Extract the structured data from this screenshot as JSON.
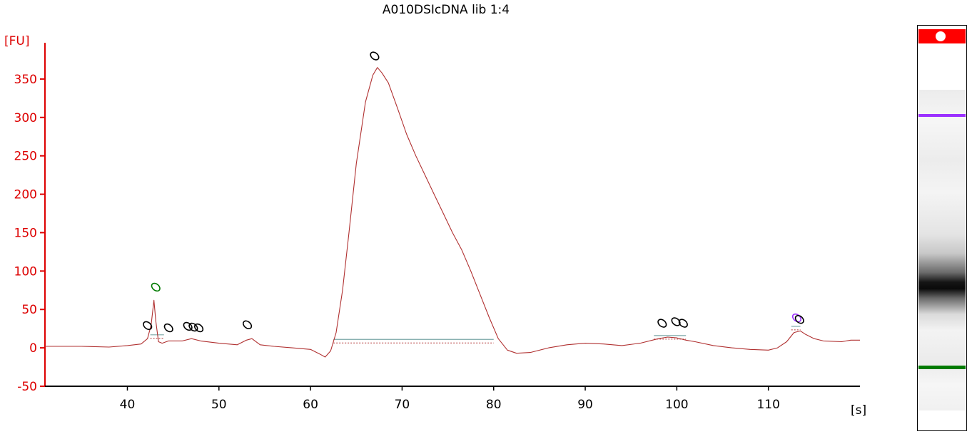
{
  "title": "A010DSIcDNA lib 1:4",
  "colors": {
    "axis_y": "#dd0000",
    "trace": "#b03030",
    "axis_x": "#000000",
    "baseline": "#7aa6a6",
    "marker_lower": "#007a00",
    "marker_upper": "#9b30ff",
    "peak_marker": "#000000"
  },
  "chart_data": {
    "type": "line",
    "title": "A010DSIcDNA lib 1:4",
    "xlabel": "[s]",
    "ylabel": "[FU]",
    "xlim": [
      31,
      120
    ],
    "ylim": [
      -50,
      400
    ],
    "x_ticks": [
      40,
      50,
      60,
      70,
      80,
      90,
      100,
      110
    ],
    "y_ticks": [
      -50,
      0,
      50,
      100,
      150,
      200,
      250,
      300,
      350
    ],
    "series": [
      {
        "name": "",
        "x": [
          31,
          35,
          38,
          40,
          41.5,
          42.2,
          42.6,
          42.9,
          43.1,
          43.4,
          43.8,
          44.5,
          46,
          47,
          48,
          50,
          52,
          53,
          53.6,
          54.5,
          56,
          58,
          60,
          61,
          61.6,
          62.2,
          62.8,
          63.5,
          64.2,
          65,
          66,
          66.8,
          67.3,
          67.8,
          68.5,
          69.5,
          70.5,
          71.5,
          72.5,
          73.5,
          74.5,
          75.5,
          76.5,
          77.5,
          78.5,
          79.5,
          80.5,
          81.5,
          82.5,
          84,
          86,
          88,
          90,
          92,
          94,
          96,
          98,
          99,
          100,
          101,
          102,
          104,
          106,
          108,
          110,
          111,
          112,
          112.8,
          113.5,
          114,
          115,
          116,
          118,
          119,
          120
        ],
        "y": [
          2,
          2,
          1,
          3,
          5,
          12,
          30,
          62,
          35,
          8,
          6,
          9,
          9,
          12,
          9,
          6,
          4,
          10,
          12,
          4,
          2,
          0,
          -2,
          -8,
          -12,
          -4,
          20,
          75,
          150,
          240,
          320,
          355,
          365,
          358,
          345,
          312,
          278,
          250,
          225,
          200,
          175,
          150,
          128,
          100,
          70,
          40,
          12,
          -3,
          -7,
          -6,
          0,
          4,
          6,
          5,
          3,
          6,
          12,
          14,
          13,
          10,
          8,
          3,
          0,
          -2,
          -3,
          0,
          8,
          20,
          22,
          18,
          12,
          9,
          8,
          10,
          10
        ]
      }
    ],
    "baselines": [
      {
        "x": [
          42.5,
          44
        ],
        "y": 17
      },
      {
        "x": [
          62.5,
          80
        ],
        "y": 11
      },
      {
        "x": [
          97.5,
          101
        ],
        "y": 16
      },
      {
        "x": [
          112.5,
          113.5
        ],
        "y": 28
      }
    ],
    "peak_markers": [
      {
        "x": 43.1,
        "y": 79,
        "color": "#007a00"
      },
      {
        "x": 42.2,
        "y": 29,
        "color": "#000000"
      },
      {
        "x": 44.5,
        "y": 26,
        "color": "#000000"
      },
      {
        "x": 46.6,
        "y": 28,
        "color": "#000000"
      },
      {
        "x": 47.2,
        "y": 27,
        "color": "#000000"
      },
      {
        "x": 47.8,
        "y": 26,
        "color": "#000000"
      },
      {
        "x": 53.1,
        "y": 30,
        "color": "#000000"
      },
      {
        "x": 67.0,
        "y": 380,
        "color": "#000000"
      },
      {
        "x": 98.4,
        "y": 32,
        "color": "#000000"
      },
      {
        "x": 99.9,
        "y": 34,
        "color": "#000000"
      },
      {
        "x": 100.7,
        "y": 32,
        "color": "#000000"
      },
      {
        "x": 113.1,
        "y": 39,
        "color": "#9b30ff"
      },
      {
        "x": 113.4,
        "y": 37,
        "color": "#000000"
      }
    ]
  }
}
